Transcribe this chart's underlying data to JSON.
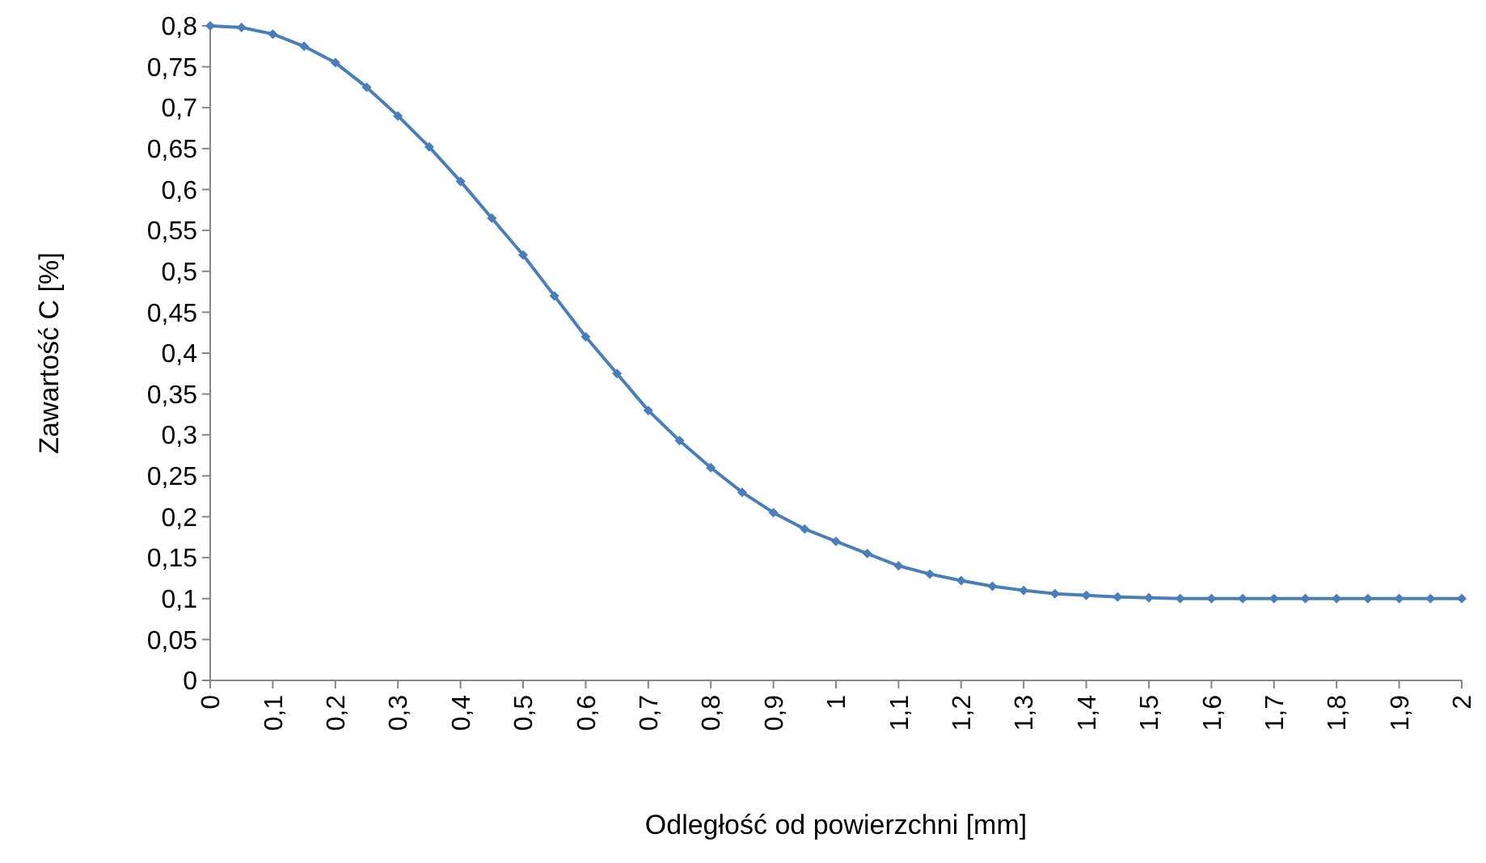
{
  "chart_data": {
    "type": "line",
    "xlabel": "Odległość od powierzchni [mm]",
    "ylabel": "Zawartość C [%]",
    "x": [
      0,
      0.05,
      0.1,
      0.15,
      0.2,
      0.25,
      0.3,
      0.35,
      0.4,
      0.45,
      0.5,
      0.55,
      0.6,
      0.65,
      0.7,
      0.75,
      0.8,
      0.85,
      0.9,
      0.95,
      1.0,
      1.05,
      1.1,
      1.15,
      1.2,
      1.25,
      1.3,
      1.35,
      1.4,
      1.45,
      1.5,
      1.55,
      1.6,
      1.65,
      1.7,
      1.75,
      1.8,
      1.85,
      1.9,
      1.95,
      2.0
    ],
    "series": [
      {
        "color": "#4a7ebb",
        "values": [
          0.8,
          0.798,
          0.79,
          0.775,
          0.755,
          0.725,
          0.69,
          0.652,
          0.61,
          0.565,
          0.52,
          0.47,
          0.42,
          0.375,
          0.33,
          0.293,
          0.26,
          0.23,
          0.205,
          0.185,
          0.17,
          0.155,
          0.14,
          0.13,
          0.122,
          0.115,
          0.11,
          0.106,
          0.104,
          0.102,
          0.101,
          0.1,
          0.1,
          0.1,
          0.1,
          0.1,
          0.1,
          0.1,
          0.1,
          0.1,
          0.1
        ]
      }
    ],
    "xlim": [
      0,
      2
    ],
    "xticks": [
      0,
      {
        "value": 0.1,
        "label": "0,1"
      },
      {
        "value": 0.2,
        "label": "0,2"
      },
      {
        "value": 0.3,
        "label": "0,3"
      },
      {
        "value": 0.4,
        "label": "0,4"
      },
      {
        "value": 0.5,
        "label": "0,5"
      },
      {
        "value": 0.6,
        "label": "0,6"
      },
      {
        "value": 0.7,
        "label": "0,7"
      },
      {
        "value": 0.8,
        "label": "0,8"
      },
      {
        "value": 0.9,
        "label": "0,9"
      },
      1,
      {
        "value": 1.1,
        "label": "1,1"
      },
      {
        "value": 1.2,
        "label": "1,2"
      },
      {
        "value": 1.3,
        "label": "1,3"
      },
      {
        "value": 1.4,
        "label": "1,4"
      },
      {
        "value": 1.5,
        "label": "1,5"
      },
      {
        "value": 1.6,
        "label": "1,6"
      },
      {
        "value": 1.7,
        "label": "1,7"
      },
      {
        "value": 1.8,
        "label": "1,8"
      },
      {
        "value": 1.9,
        "label": "1,9"
      },
      2
    ],
    "ylim": [
      0,
      0.8
    ],
    "yticks": [
      0,
      {
        "value": 0.05,
        "label": "0,05"
      },
      {
        "value": 0.1,
        "label": "0,1"
      },
      {
        "value": 0.15,
        "label": "0,15"
      },
      {
        "value": 0.2,
        "label": "0,2"
      },
      {
        "value": 0.25,
        "label": "0,25"
      },
      {
        "value": 0.3,
        "label": "0,3"
      },
      {
        "value": 0.35,
        "label": "0,35"
      },
      {
        "value": 0.4,
        "label": "0,4"
      },
      {
        "value": 0.45,
        "label": "0,45"
      },
      {
        "value": 0.5,
        "label": "0,5"
      },
      {
        "value": 0.55,
        "label": "0,55"
      },
      {
        "value": 0.6,
        "label": "0,6"
      },
      {
        "value": 0.65,
        "label": "0,65"
      },
      {
        "value": 0.7,
        "label": "0,7"
      },
      {
        "value": 0.75,
        "label": "0,75"
      },
      {
        "value": 0.8,
        "label": "0,8"
      }
    ],
    "marker": "diamond",
    "line_style": "solid"
  }
}
